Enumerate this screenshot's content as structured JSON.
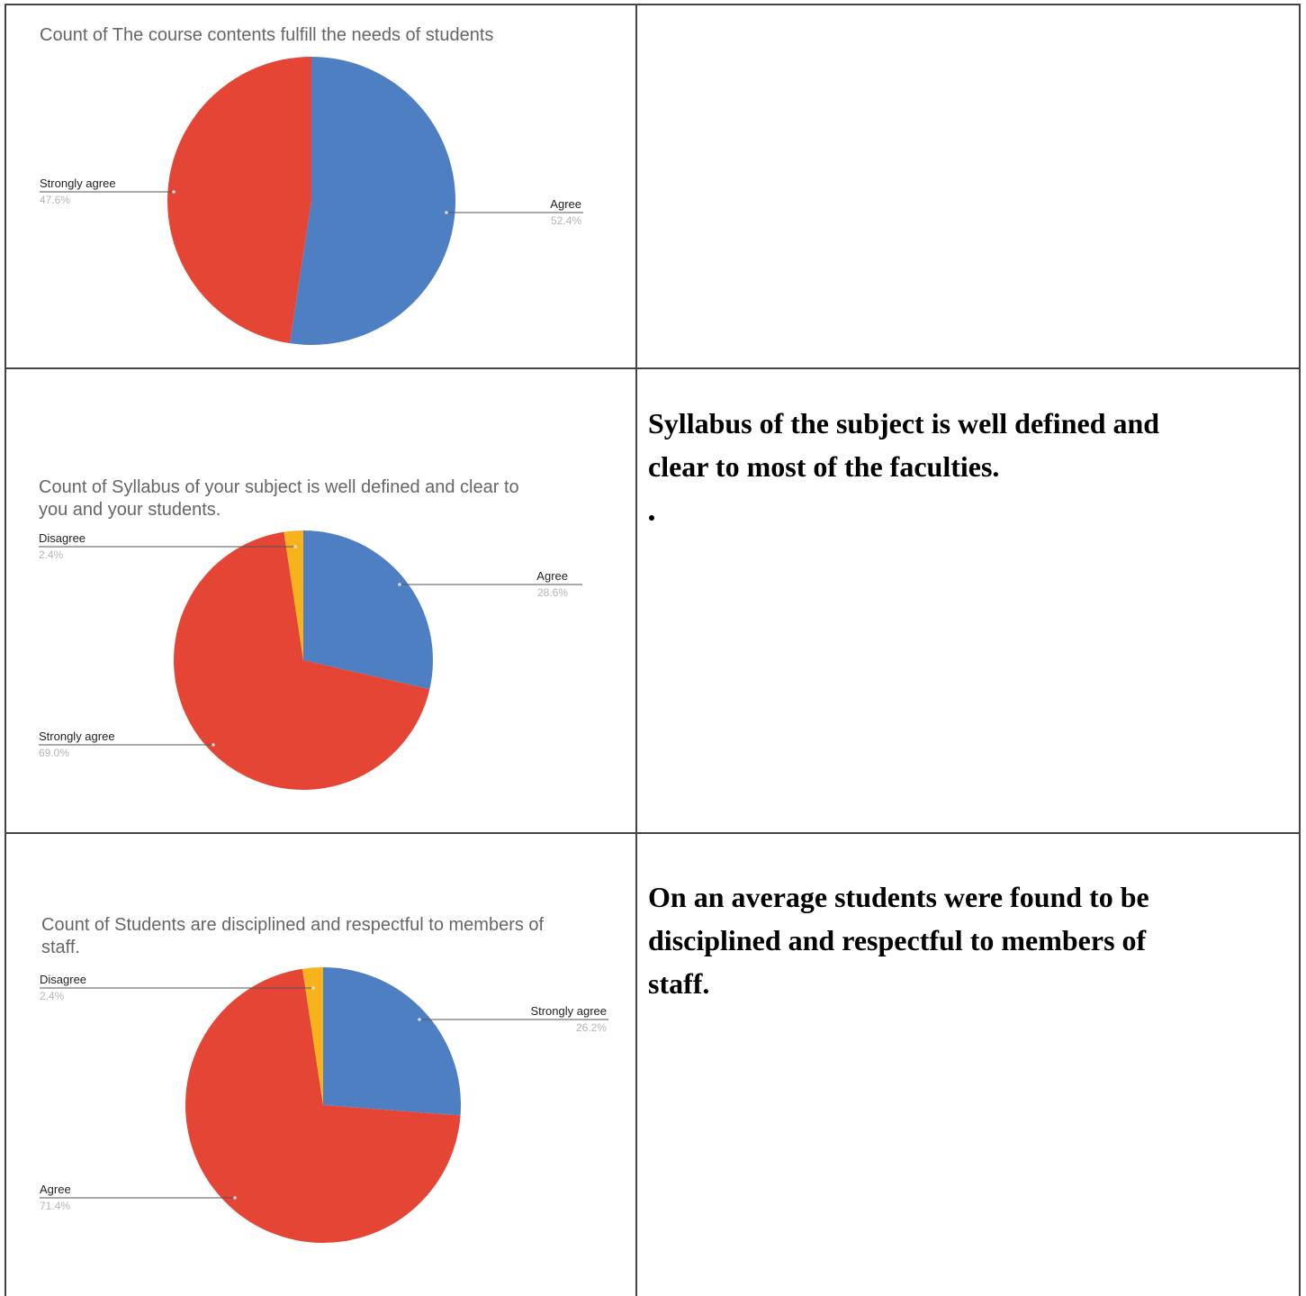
{
  "charts": [
    {
      "title": "Count of  The course contents fulfill the needs of students",
      "title_lines": [
        "Count of  The course contents fulfill the needs of students"
      ]
    },
    {
      "title": "Count of Syllabus of your subject is well defined and clear to you and your students.",
      "title_lines": [
        "Count of Syllabus of your subject is well defined and clear to",
        "you and your students."
      ]
    },
    {
      "title": "Count of Students are disciplined and respectful to members of staff.",
      "title_lines": [
        "Count of Students are disciplined and respectful to members of",
        "staff."
      ]
    }
  ],
  "comments": [
    "",
    "Syllabus of the subject is well defined and clear to most of the faculties.",
    "On an average students were found to be disciplined and respectful to members of staff."
  ],
  "comment_lines": [
    [],
    [
      "Syllabus of the subject is well defined and",
      "clear to most of the faculties."
    ],
    [
      "On an average students were found to be",
      "disciplined and respectful to members of",
      "staff."
    ]
  ],
  "chart_data": [
    {
      "type": "pie",
      "title": "Count of  The course contents fulfill the needs of students",
      "slices": [
        {
          "label": "Agree",
          "value": 52.4,
          "pct_label": "52.4%",
          "color": "#4f7fc3"
        },
        {
          "label": "Strongly agree",
          "value": 47.6,
          "pct_label": "47.6%",
          "color": "#e54535"
        }
      ]
    },
    {
      "type": "pie",
      "title": "Count of Syllabus of your subject is well defined and clear to you and your students.",
      "slices": [
        {
          "label": "Agree",
          "value": 28.6,
          "pct_label": "28.6%",
          "color": "#4f7fc3"
        },
        {
          "label": "Strongly agree",
          "value": 69.0,
          "pct_label": "69.0%",
          "color": "#e54535"
        },
        {
          "label": "Disagree",
          "value": 2.4,
          "pct_label": "2.4%",
          "color": "#f6b31b"
        }
      ]
    },
    {
      "type": "pie",
      "title": "Count of Students are disciplined and respectful to members of staff.",
      "slices": [
        {
          "label": "Strongly agree",
          "value": 26.2,
          "pct_label": "26.2%",
          "color": "#4f7fc3"
        },
        {
          "label": "Agree",
          "value": 71.4,
          "pct_label": "71.4%",
          "color": "#e54535"
        },
        {
          "label": "Disagree",
          "value": 2.4,
          "pct_label": "2.4%",
          "color": "#f6b31b"
        }
      ]
    }
  ]
}
